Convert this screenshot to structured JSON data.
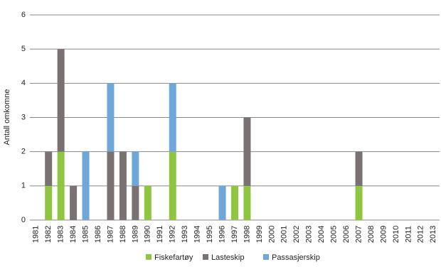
{
  "chart_data": {
    "type": "stacked_bar",
    "y_label": "Antall omkomne",
    "categories": [
      "1981",
      "1982",
      "1983",
      "1984",
      "1985",
      "1986",
      "1987",
      "1988",
      "1989",
      "1990",
      "1991",
      "1992",
      "1993",
      "1994",
      "1995",
      "1996",
      "1997",
      "1998",
      "1999",
      "2000",
      "2001",
      "2002",
      "2003",
      "2004",
      "2005",
      "2006",
      "2007",
      "2008",
      "2009",
      "2010",
      "2011",
      "2012",
      "2013"
    ],
    "series": [
      {
        "name": "Fiskefartøy",
        "color": "#8fc641",
        "values": [
          0,
          1,
          2,
          0,
          0,
          0,
          0,
          0,
          0,
          1,
          0,
          2,
          0,
          0,
          0,
          0,
          1,
          1,
          0,
          0,
          0,
          0,
          0,
          0,
          0,
          0,
          1,
          0,
          0,
          0,
          0,
          0,
          0
        ]
      },
      {
        "name": "Lasteskip",
        "color": "#7a7272",
        "values": [
          0,
          1,
          3,
          1,
          0,
          0,
          2,
          2,
          1,
          0,
          0,
          0,
          0,
          0,
          0,
          0,
          0,
          2,
          0,
          0,
          0,
          0,
          0,
          0,
          0,
          0,
          1,
          0,
          0,
          0,
          0,
          0,
          0
        ]
      },
      {
        "name": "Passasjerskip",
        "color": "#6fa7db",
        "values": [
          0,
          0,
          0,
          0,
          2,
          0,
          2,
          0,
          1,
          0,
          0,
          2,
          0,
          0,
          0,
          1,
          0,
          0,
          0,
          0,
          0,
          0,
          0,
          0,
          0,
          0,
          0,
          0,
          0,
          0,
          0,
          0,
          0
        ]
      }
    ],
    "ylim": [
      0,
      6
    ],
    "yticks": [
      0,
      1,
      2,
      3,
      4,
      5,
      6
    ],
    "grid": true,
    "legend": "bottom"
  }
}
